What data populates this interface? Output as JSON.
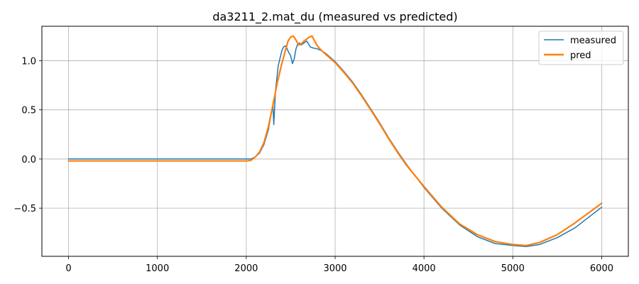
{
  "chart_data": {
    "type": "line",
    "title": "da3211_2.mat_du  (measured vs predicted)",
    "xlabel": "",
    "ylabel": "",
    "xlim": [
      -300,
      6300
    ],
    "ylim": [
      -0.99,
      1.35
    ],
    "x_ticks": [
      0,
      1000,
      2000,
      3000,
      4000,
      5000,
      6000
    ],
    "x_tick_labels": [
      "0",
      "1000",
      "2000",
      "3000",
      "4000",
      "5000",
      "6000"
    ],
    "y_ticks": [
      -0.5,
      0.0,
      0.5,
      1.0
    ],
    "y_tick_labels": [
      "−0.5",
      "0.0",
      "0.5",
      "1.0"
    ],
    "grid": true,
    "legend_position": "top-right",
    "series": [
      {
        "name": "measured",
        "color": "#1f77b4",
        "x": [
          0,
          500,
          1000,
          1500,
          2000,
          2050,
          2100,
          2150,
          2200,
          2250,
          2300,
          2310,
          2330,
          2360,
          2400,
          2420,
          2440,
          2460,
          2480,
          2500,
          2520,
          2540,
          2560,
          2580,
          2600,
          2620,
          2650,
          2680,
          2700,
          2720,
          2750,
          2800,
          2850,
          2900,
          3000,
          3100,
          3200,
          3300,
          3400,
          3500,
          3600,
          3700,
          3800,
          3900,
          4000,
          4200,
          4400,
          4600,
          4800,
          5000,
          5150,
          5300,
          5500,
          5700,
          6000
        ],
        "y": [
          0.0,
          0.0,
          0.0,
          0.0,
          0.0,
          0.0,
          0.02,
          0.06,
          0.15,
          0.3,
          0.56,
          0.35,
          0.7,
          0.95,
          1.1,
          1.14,
          1.15,
          1.12,
          1.08,
          1.05,
          0.97,
          1.02,
          1.12,
          1.17,
          1.18,
          1.16,
          1.18,
          1.2,
          1.17,
          1.14,
          1.13,
          1.12,
          1.1,
          1.07,
          0.99,
          0.89,
          0.78,
          0.65,
          0.51,
          0.37,
          0.22,
          0.08,
          -0.05,
          -0.17,
          -0.29,
          -0.5,
          -0.67,
          -0.79,
          -0.86,
          -0.88,
          -0.89,
          -0.87,
          -0.8,
          -0.7,
          -0.49
        ]
      },
      {
        "name": "pred",
        "color": "#ff7f0e",
        "x": [
          0,
          500,
          1000,
          1500,
          2000,
          2050,
          2100,
          2150,
          2200,
          2250,
          2300,
          2350,
          2400,
          2440,
          2470,
          2500,
          2530,
          2560,
          2590,
          2620,
          2650,
          2680,
          2710,
          2740,
          2770,
          2800,
          2850,
          2900,
          3000,
          3100,
          3200,
          3300,
          3400,
          3500,
          3600,
          3700,
          3800,
          3900,
          4000,
          4200,
          4400,
          4600,
          4800,
          5000,
          5150,
          5300,
          5500,
          5700,
          6000
        ],
        "y": [
          -0.02,
          -0.02,
          -0.02,
          -0.02,
          -0.02,
          -0.015,
          0.02,
          0.07,
          0.17,
          0.33,
          0.55,
          0.78,
          0.97,
          1.1,
          1.2,
          1.24,
          1.25,
          1.21,
          1.16,
          1.17,
          1.2,
          1.22,
          1.24,
          1.25,
          1.2,
          1.15,
          1.1,
          1.06,
          0.98,
          0.88,
          0.77,
          0.64,
          0.5,
          0.36,
          0.21,
          0.07,
          -0.06,
          -0.17,
          -0.28,
          -0.49,
          -0.66,
          -0.77,
          -0.84,
          -0.87,
          -0.88,
          -0.85,
          -0.77,
          -0.65,
          -0.45
        ]
      }
    ]
  }
}
